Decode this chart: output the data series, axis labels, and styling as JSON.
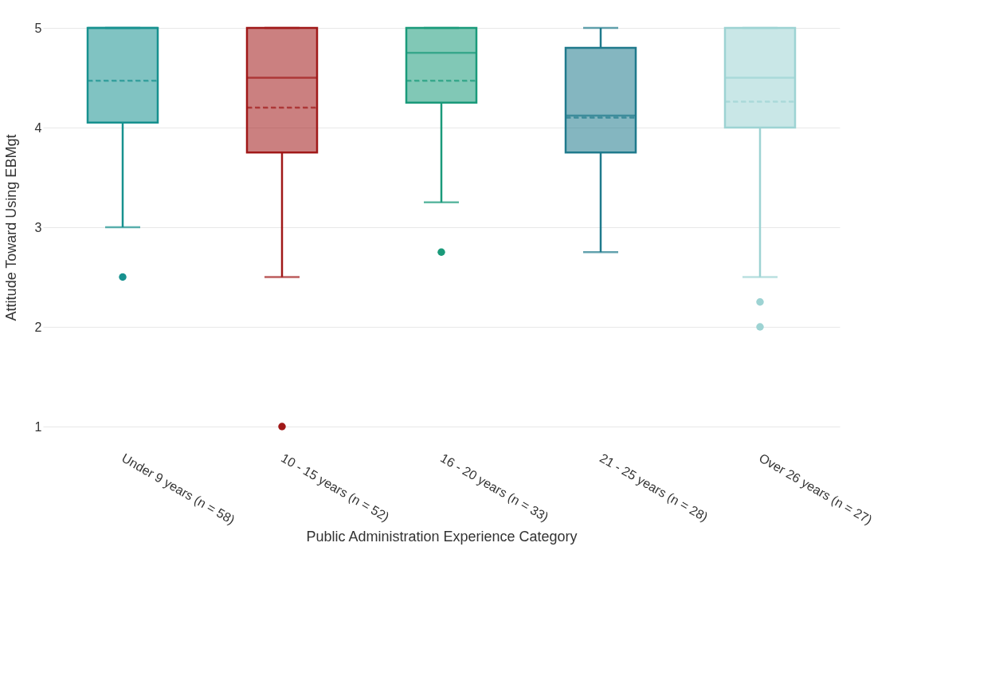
{
  "chart_data": {
    "type": "box",
    "xlabel": "Public Administration Experience Category",
    "ylabel": "Attitude Toward Using EBMgt",
    "categories": [
      "Under 9 years (n = 58)",
      "10 - 15 years (n = 52)",
      "16 - 20 years (n = 33)",
      "21 - 25 years (n = 28)",
      "Over 26 years (n = 27)"
    ],
    "colors": [
      "#17918f",
      "#a01818",
      "#1a9a7a",
      "#1f7a8c",
      "#9dd3d3"
    ],
    "boxes": [
      {
        "low": 3,
        "q1": 4.05,
        "median": 5,
        "q3": 5,
        "high": 5,
        "mean": 4.47,
        "outliers": [
          2.5
        ]
      },
      {
        "low": 2.5,
        "q1": 3.75,
        "median": 4.5,
        "q3": 5,
        "high": 5,
        "mean": 4.2,
        "outliers": [
          1
        ]
      },
      {
        "low": 3.25,
        "q1": 4.25,
        "median": 4.75,
        "q3": 5,
        "high": 5,
        "mean": 4.47,
        "outliers": [
          2.75
        ]
      },
      {
        "low": 2.75,
        "q1": 3.75,
        "median": 4.12,
        "q3": 4.8,
        "high": 5,
        "mean": 4.1
      },
      {
        "low": 2.5,
        "q1": 4,
        "median": 4.5,
        "q3": 5,
        "high": 5,
        "mean": 4.26,
        "outliers": [
          2.25,
          2
        ]
      }
    ],
    "ylim": [
      1,
      5
    ],
    "yticks": [
      1,
      2,
      3,
      4,
      5
    ],
    "grid": "y",
    "legend": false
  }
}
